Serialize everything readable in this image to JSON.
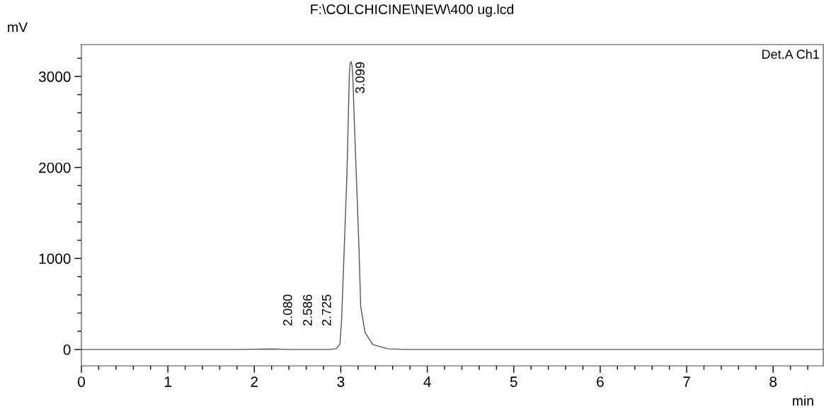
{
  "chart_data": {
    "type": "line",
    "title": "F:\\COLCHICINE\\NEW\\400 ug.lcd",
    "ylabel": "mV",
    "xlabel": "min",
    "series": [
      {
        "color": "#555555",
        "x": [
          0,
          1.0,
          1.78,
          2.2,
          2.42,
          2.65,
          2.87,
          2.95,
          2.99,
          3.01,
          3.04,
          3.07,
          3.09,
          3.1,
          3.11,
          3.12,
          3.13,
          3.14,
          3.15,
          3.18,
          3.21,
          3.23,
          3.28,
          3.37,
          3.54,
          3.76,
          5.0,
          6.94,
          8.58
        ],
        "values": [
          0,
          0,
          0,
          5,
          0,
          0,
          0,
          10,
          60,
          342,
          1119,
          1896,
          2673,
          3060,
          3150,
          3162,
          3120,
          2980,
          2673,
          1896,
          1119,
          474,
          186,
          54,
          8,
          0,
          0,
          0,
          0
        ]
      }
    ],
    "xlim": [
      0,
      8.58
    ],
    "ylim": [
      -180,
      3350
    ],
    "xticks": [
      0,
      {
        "value": 0.2,
        "label": null
      },
      {
        "value": 0.4,
        "label": null
      },
      {
        "value": 0.6,
        "label": null
      },
      {
        "value": 0.8,
        "label": null
      },
      1,
      {
        "value": 1.2,
        "label": null
      },
      {
        "value": 1.4,
        "label": null
      },
      {
        "value": 1.6,
        "label": null
      },
      {
        "value": 1.8,
        "label": null
      },
      2,
      {
        "value": 2.2,
        "label": null
      },
      {
        "value": 2.4,
        "label": null
      },
      {
        "value": 2.6,
        "label": null
      },
      {
        "value": 2.8,
        "label": null
      },
      3,
      {
        "value": 3.2,
        "label": null
      },
      {
        "value": 3.4,
        "label": null
      },
      {
        "value": 3.6,
        "label": null
      },
      {
        "value": 3.8,
        "label": null
      },
      4,
      {
        "value": 4.2,
        "label": null
      },
      {
        "value": 4.4,
        "label": null
      },
      {
        "value": 4.6,
        "label": null
      },
      {
        "value": 4.8,
        "label": null
      },
      5,
      {
        "value": 5.2,
        "label": null
      },
      {
        "value": 5.4,
        "label": null
      },
      {
        "value": 5.6,
        "label": null
      },
      {
        "value": 5.8,
        "label": null
      },
      6,
      {
        "value": 6.2,
        "label": null
      },
      {
        "value": 6.4,
        "label": null
      },
      {
        "value": 6.6,
        "label": null
      },
      {
        "value": 6.8,
        "label": null
      },
      7,
      {
        "value": 7.2,
        "label": null
      },
      {
        "value": 7.4,
        "label": null
      },
      {
        "value": 7.6,
        "label": null
      },
      {
        "value": 7.8,
        "label": null
      },
      8,
      {
        "value": 8.2,
        "label": null
      },
      {
        "value": 8.4,
        "label": null
      }
    ],
    "yticks": [
      0,
      {
        "value": 200,
        "label": null
      },
      {
        "value": 400,
        "label": null
      },
      {
        "value": 600,
        "label": null
      },
      {
        "value": 800,
        "label": null
      },
      1000,
      {
        "value": 1200,
        "label": null
      },
      {
        "value": 1400,
        "label": null
      },
      {
        "value": 1600,
        "label": null
      },
      {
        "value": 1800,
        "label": null
      },
      2000,
      {
        "value": 2200,
        "label": null
      },
      {
        "value": 2400,
        "label": null
      },
      {
        "value": 2600,
        "label": null
      },
      {
        "value": 2800,
        "label": null
      },
      3000,
      {
        "value": 3200,
        "label": null
      }
    ],
    "annotations": [
      {
        "text": "2.080",
        "x": 2.42,
        "y": 0
      },
      {
        "text": "2.586",
        "x": 2.65,
        "y": 0
      },
      {
        "text": "2.725",
        "x": 2.87,
        "y": 0
      },
      {
        "text": "3.099",
        "x": 3.12,
        "y": 3162
      },
      "Det.A Ch1"
    ],
    "grid": false,
    "legend": false
  }
}
